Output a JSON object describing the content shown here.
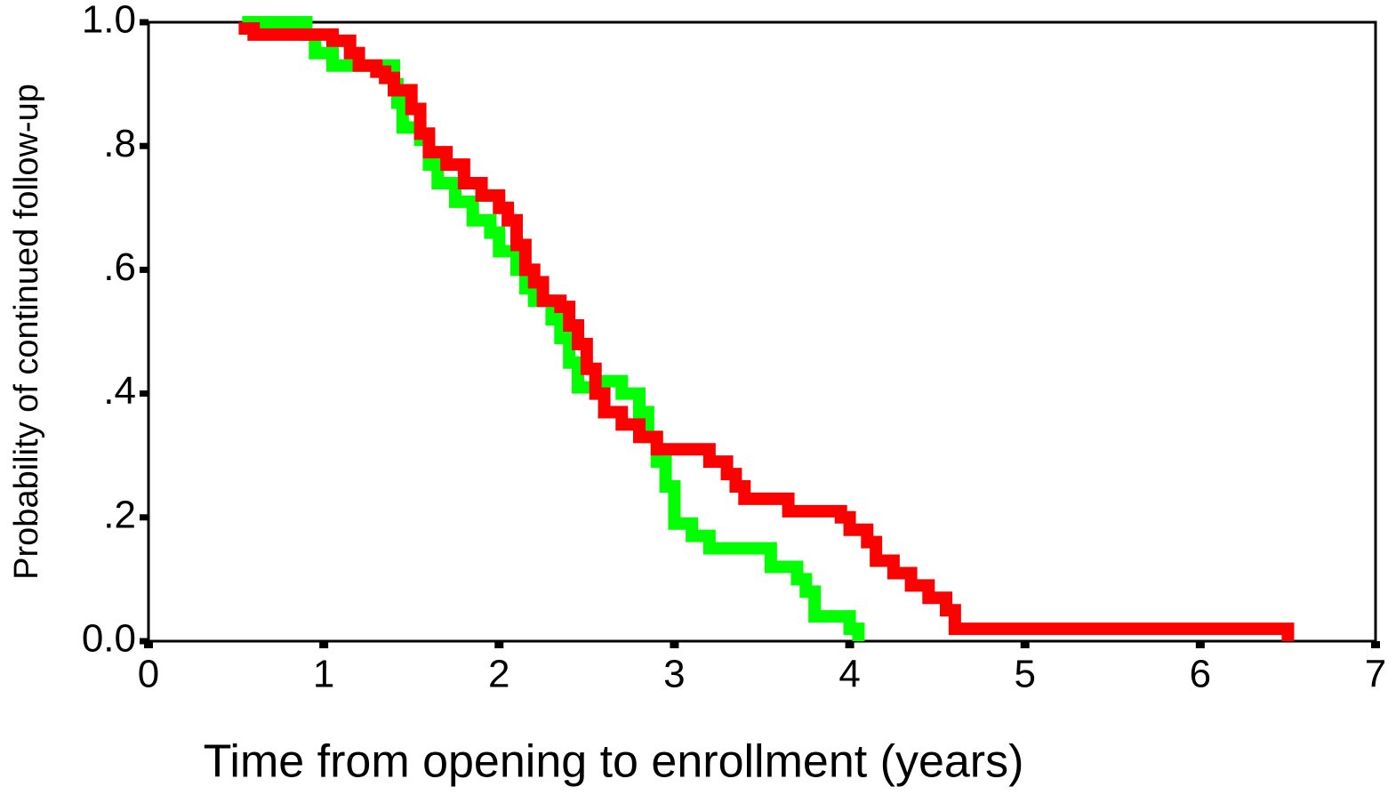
{
  "chart_data": {
    "type": "line",
    "step": true,
    "xlabel": "Time from opening to enrollment (years)",
    "ylabel": "Probability of continued follow-up",
    "xlim": [
      0,
      7
    ],
    "xticks": [
      0,
      1,
      2,
      3,
      4,
      5,
      6,
      7
    ],
    "ylim": [
      0,
      1
    ],
    "yticks": [
      {
        "value": 0,
        "label": "0.0"
      },
      {
        "value": 0.2,
        "label": ".2"
      },
      {
        "value": 0.4,
        "label": ".4"
      },
      {
        "value": 0.6,
        "label": ".6"
      },
      {
        "value": 0.8,
        "label": ".8"
      },
      {
        "value": 1,
        "label": "1.0"
      }
    ],
    "series": [
      {
        "color": "#00ff00",
        "x": [
          0.57,
          0.9,
          0.95,
          1.05,
          1.4,
          1.42,
          1.45,
          1.55,
          1.6,
          1.65,
          1.75,
          1.85,
          1.95,
          2.0,
          2.1,
          2.15,
          2.2,
          2.3,
          2.35,
          2.4,
          2.45,
          2.6,
          2.7,
          2.8,
          2.85,
          2.9,
          2.95,
          3.0,
          3.1,
          3.2,
          3.55,
          3.7,
          3.75,
          3.8,
          4.0,
          4.05
        ],
        "values": [
          1.0,
          0.98,
          0.95,
          0.93,
          0.9,
          0.87,
          0.83,
          0.81,
          0.77,
          0.74,
          0.71,
          0.68,
          0.66,
          0.63,
          0.6,
          0.57,
          0.55,
          0.52,
          0.49,
          0.45,
          0.41,
          0.42,
          0.4,
          0.37,
          0.33,
          0.29,
          0.25,
          0.19,
          0.17,
          0.15,
          0.12,
          0.1,
          0.08,
          0.04,
          0.02,
          0.01
        ]
      },
      {
        "color": "#ff0000",
        "x": [
          0.55,
          0.6,
          1.05,
          1.15,
          1.2,
          1.3,
          1.35,
          1.4,
          1.5,
          1.55,
          1.6,
          1.7,
          1.8,
          1.9,
          2.0,
          2.05,
          2.1,
          2.15,
          2.2,
          2.25,
          2.35,
          2.4,
          2.45,
          2.5,
          2.55,
          2.6,
          2.7,
          2.8,
          2.9,
          3.2,
          3.3,
          3.35,
          3.4,
          3.65,
          3.95,
          4.0,
          4.1,
          4.15,
          4.25,
          4.35,
          4.45,
          4.55,
          4.6,
          6.5
        ],
        "values": [
          0.99,
          0.98,
          0.97,
          0.95,
          0.93,
          0.92,
          0.91,
          0.89,
          0.86,
          0.82,
          0.79,
          0.77,
          0.74,
          0.72,
          0.7,
          0.68,
          0.64,
          0.6,
          0.58,
          0.55,
          0.54,
          0.51,
          0.48,
          0.44,
          0.4,
          0.37,
          0.35,
          0.33,
          0.31,
          0.29,
          0.27,
          0.25,
          0.23,
          0.21,
          0.2,
          0.18,
          0.16,
          0.13,
          0.11,
          0.09,
          0.07,
          0.05,
          0.02,
          0.01
        ]
      }
    ]
  }
}
